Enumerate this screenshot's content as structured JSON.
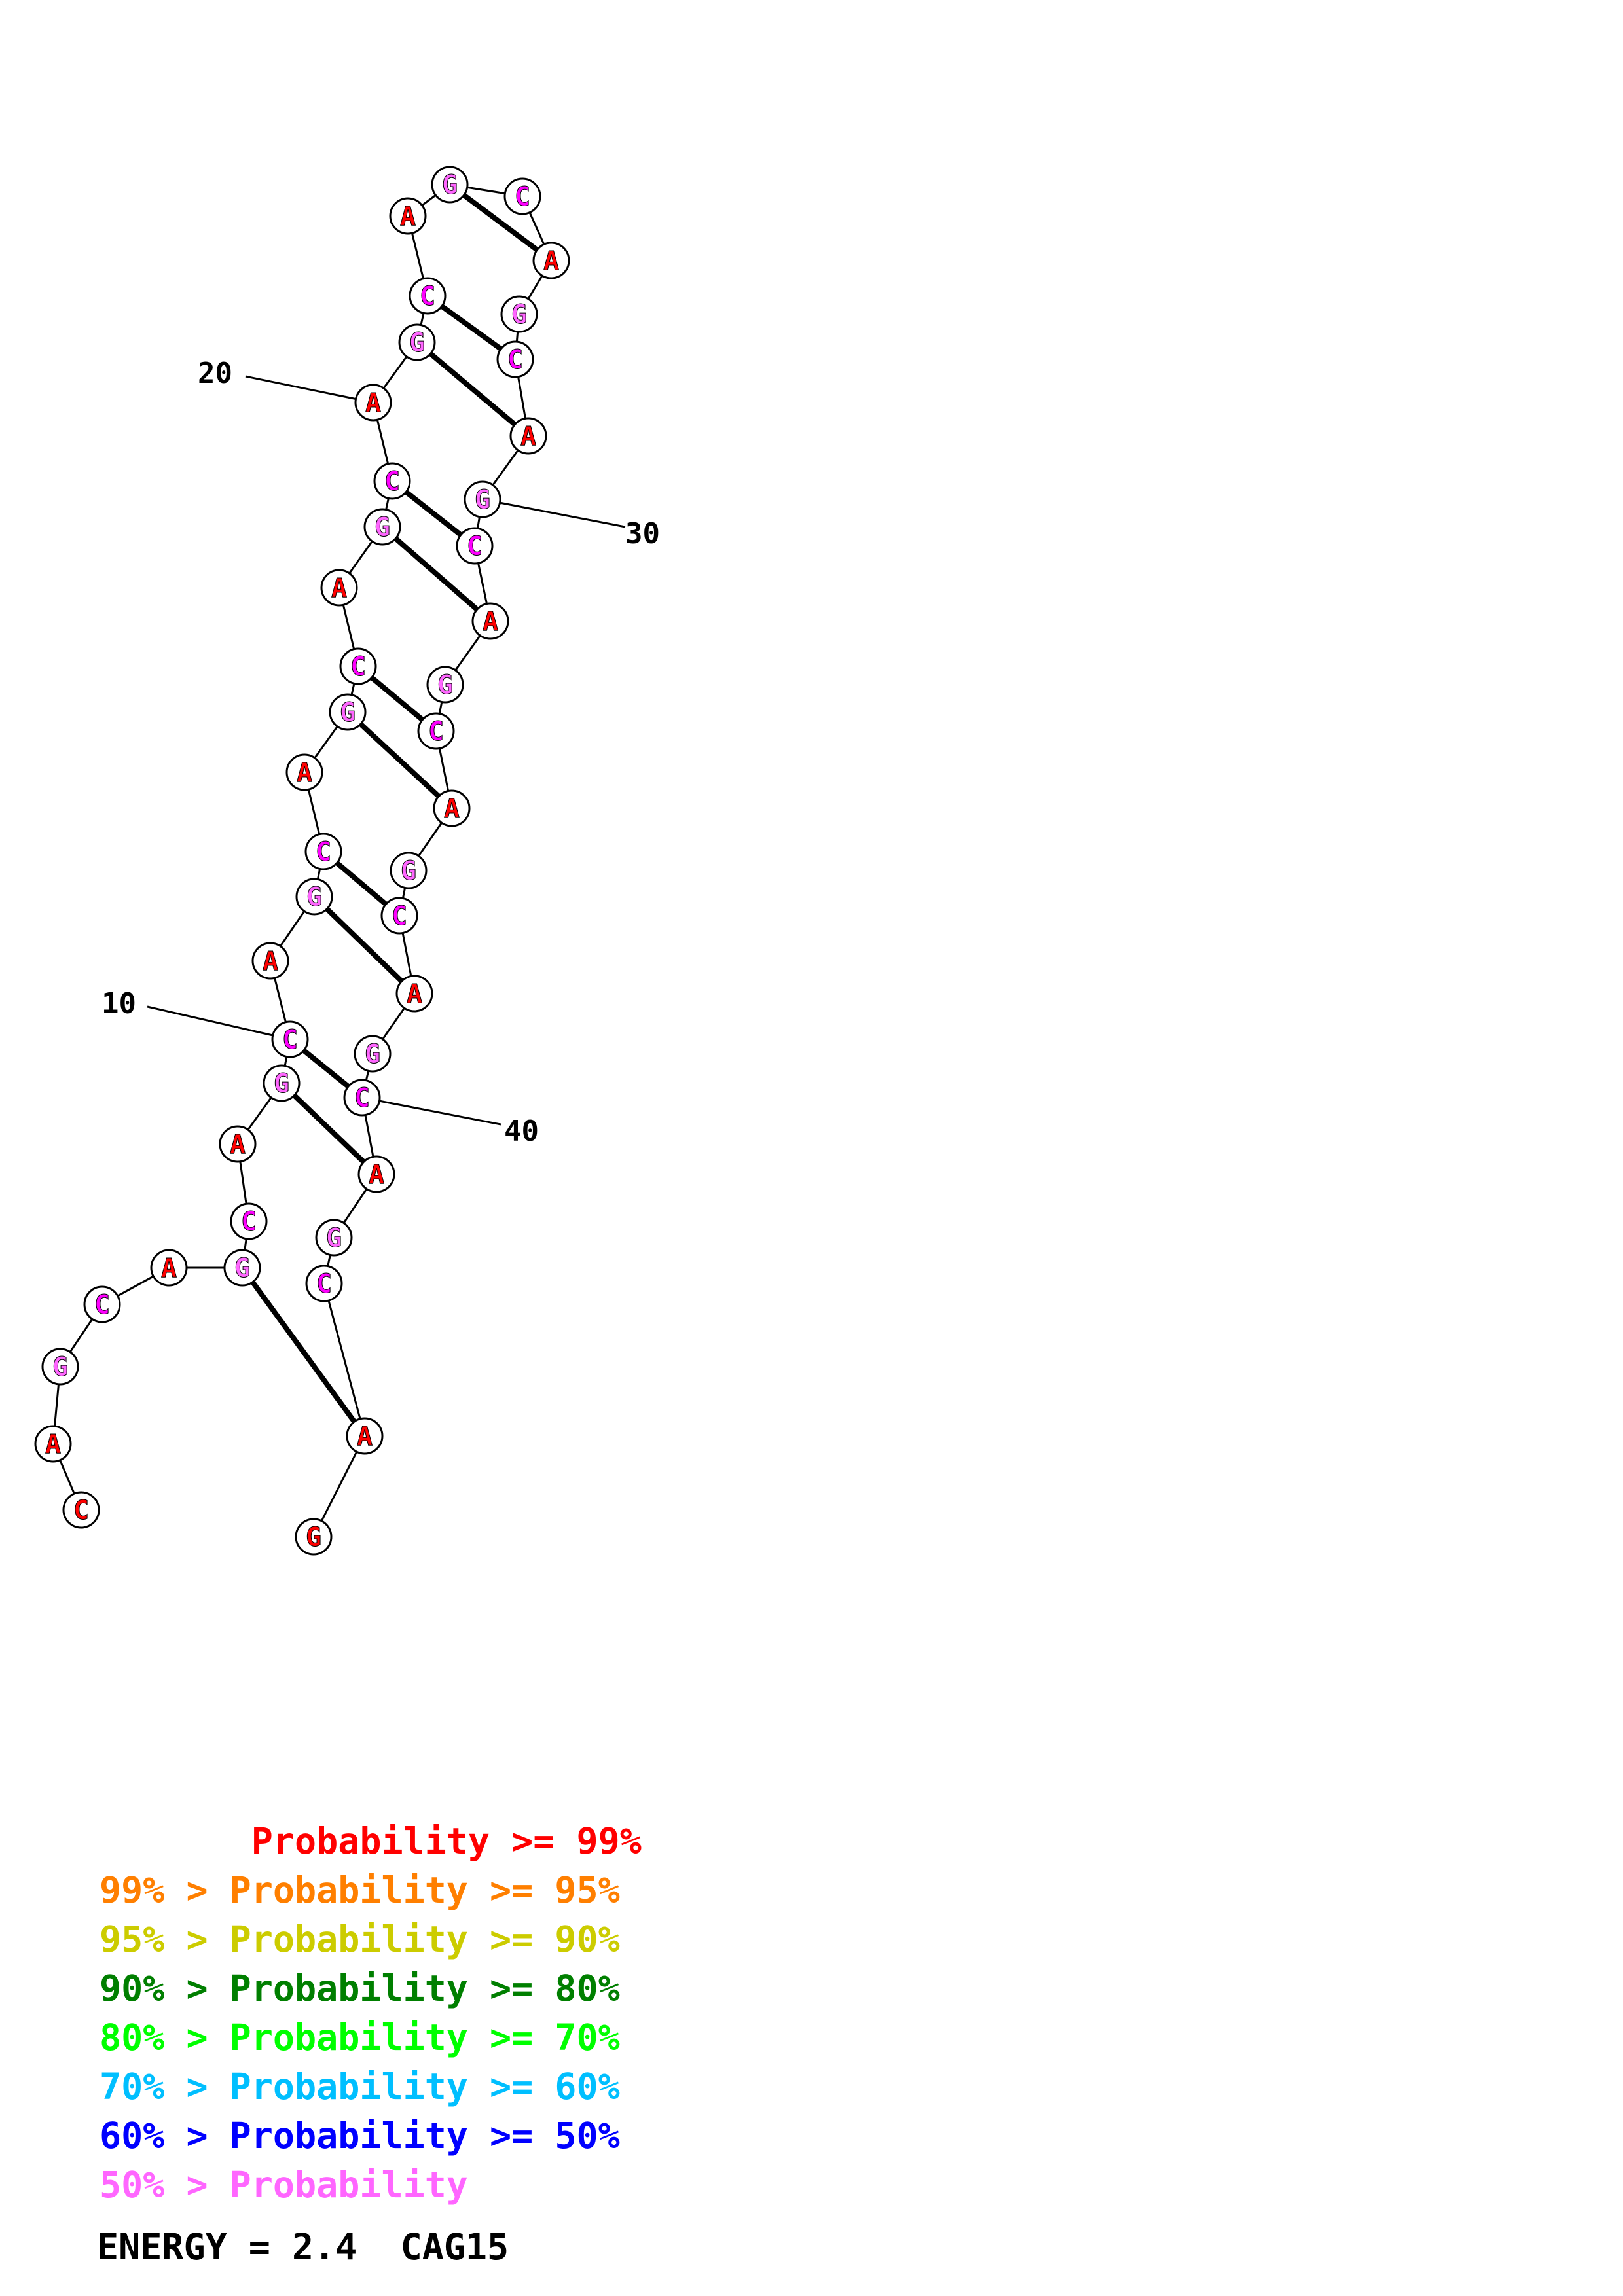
{
  "title": "CAG15",
  "energy_text": "ENERGY = 2.4  CAG15",
  "sequence": [
    "C",
    "A",
    "G",
    "C",
    "A",
    "G",
    "C",
    "A",
    "G",
    "C",
    "A",
    "G",
    "C",
    "A",
    "G",
    "C",
    "A",
    "G",
    "C",
    "A",
    "G",
    "C",
    "A",
    "G",
    "C",
    "A",
    "G",
    "C",
    "A",
    "G",
    "C",
    "A",
    "G",
    "C",
    "A",
    "G",
    "C",
    "A",
    "G",
    "C",
    "A",
    "G",
    "C",
    "A",
    "G"
  ],
  "colors": {
    "A": "#ff0000",
    "C": "#ff00ff",
    "G": "#ff66ff",
    "C_end": "#ff0000",
    "G_end": "#ff0000"
  },
  "pairs": [
    [
      6,
      44
    ],
    [
      9,
      41
    ],
    [
      10,
      40
    ],
    [
      12,
      38
    ],
    [
      13,
      37
    ],
    [
      15,
      35
    ],
    [
      16,
      34
    ],
    [
      18,
      32
    ],
    [
      19,
      31
    ],
    [
      21,
      29
    ],
    [
      22,
      28
    ],
    [
      24,
      26
    ]
  ],
  "position_labels": [
    {
      "index": 10,
      "text": "10"
    },
    {
      "index": 20,
      "text": "20"
    },
    {
      "index": 30,
      "text": "30"
    },
    {
      "index": 40,
      "text": "40"
    }
  ],
  "legend": [
    {
      "text": "       Probability >= 99%",
      "color": "#ff0000"
    },
    {
      "text": "99% > Probability >= 95%",
      "color": "#ff7f00"
    },
    {
      "text": "95% > Probability >= 90%",
      "color": "#cccc00"
    },
    {
      "text": "90% > Probability >= 80%",
      "color": "#007f00"
    },
    {
      "text": "80% > Probability >= 70%",
      "color": "#00ff00"
    },
    {
      "text": "70% > Probability >= 60%",
      "color": "#00bfff"
    },
    {
      "text": "60% > Probability >= 50%",
      "color": "#0000ff"
    },
    {
      "text": "50% > Probability",
      "color": "#ff66ff"
    }
  ]
}
